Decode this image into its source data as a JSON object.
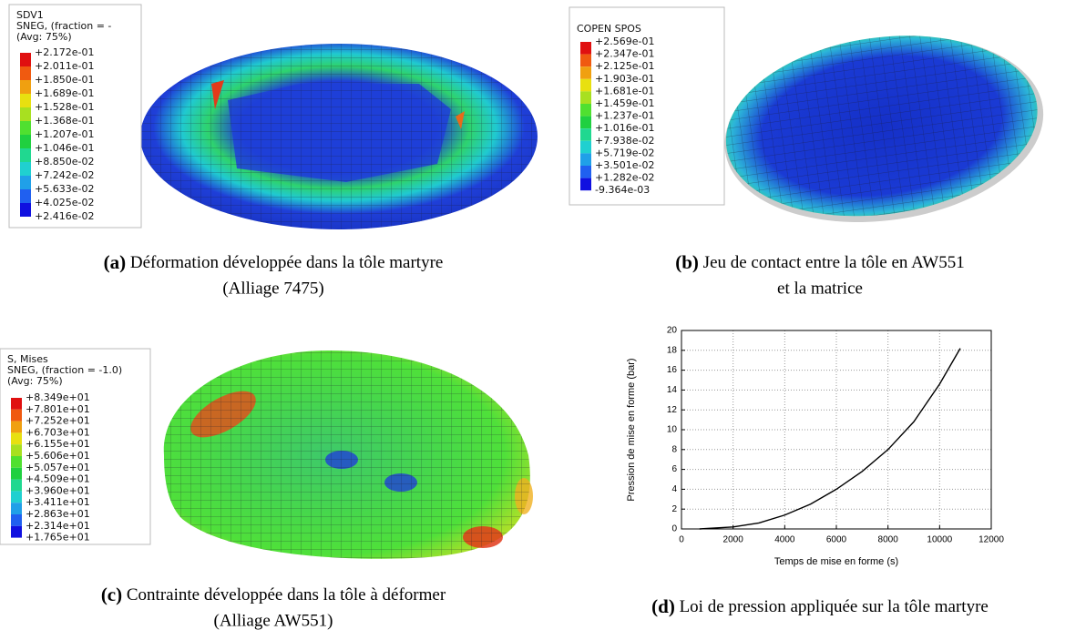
{
  "panels": [
    {
      "label": "(a)",
      "caption": [
        "Déformation développée dans la tôle martyre",
        "(Alliage 7475)"
      ],
      "legend": {
        "title": [
          "SDV1",
          "SNEG, (fraction = -",
          "(Avg: 75%)"
        ],
        "values": [
          "+2.172e-01",
          "+2.011e-01",
          "+1.850e-01",
          "+1.689e-01",
          "+1.528e-01",
          "+1.368e-01",
          "+1.207e-01",
          "+1.046e-01",
          "+8.850e-02",
          "+7.242e-02",
          "+5.633e-02",
          "+4.025e-02",
          "+2.416e-02"
        ]
      }
    },
    {
      "label": "(b)",
      "caption": [
        "Jeu de contact entre la tôle en AW551",
        "et la matrice"
      ],
      "legend": {
        "title": [
          "COPEN    SPOS"
        ],
        "values": [
          "+2.569e-01",
          "+2.347e-01",
          "+2.125e-01",
          "+1.903e-01",
          "+1.681e-01",
          "+1.459e-01",
          "+1.237e-01",
          "+1.016e-01",
          "+7.938e-02",
          "+5.719e-02",
          "+3.501e-02",
          "+1.282e-02",
          "-9.364e-03"
        ]
      }
    },
    {
      "label": "(c)",
      "caption": [
        "Contrainte développée dans la tôle à déformer",
        "(Alliage AW551)"
      ],
      "legend": {
        "title": [
          "S, Mises",
          "SNEG, (fraction = -1.0)",
          "(Avg: 75%)"
        ],
        "values": [
          "+8.349e+01",
          "+7.801e+01",
          "+7.252e+01",
          "+6.703e+01",
          "+6.155e+01",
          "+5.606e+01",
          "+5.057e+01",
          "+4.509e+01",
          "+3.960e+01",
          "+3.411e+01",
          "+2.863e+01",
          "+2.314e+01",
          "+1.765e+01"
        ]
      }
    },
    {
      "label": "(d)",
      "caption": [
        "Loi de pression appliquée sur la tôle martyre"
      ]
    }
  ],
  "chart_data": {
    "type": "line",
    "x_label": "Temps de mise en forme (s)",
    "y_label": "Pression de mise en forme (bar)",
    "x": [
      700,
      1000,
      2000,
      3000,
      4000,
      5000,
      6000,
      7000,
      8000,
      9000,
      10000,
      10800
    ],
    "values": [
      0,
      0.05,
      0.2,
      0.6,
      1.4,
      2.5,
      4.0,
      5.8,
      8.0,
      10.8,
      14.6,
      18.2
    ],
    "color": "#000000",
    "xlim": [
      0,
      12000
    ],
    "xticks": [
      0,
      2000,
      4000,
      6000,
      8000,
      10000,
      12000
    ],
    "ylim": [
      0,
      20
    ],
    "yticks": [
      0,
      2,
      4,
      6,
      8,
      10,
      12,
      14,
      16,
      18,
      20
    ],
    "grid": true
  }
}
